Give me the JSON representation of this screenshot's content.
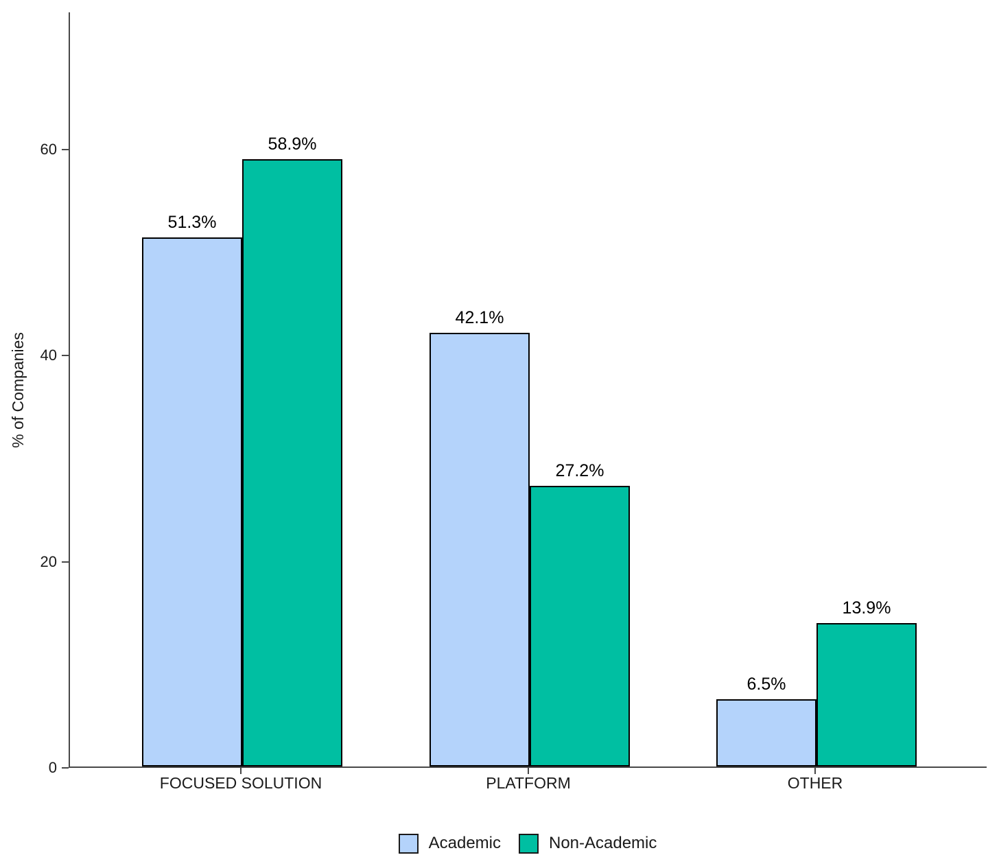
{
  "chart_data": {
    "type": "bar",
    "title": "",
    "ylabel": "% of Companies",
    "xlabel": "",
    "categories": [
      "FOCUSED SOLUTION",
      "PLATFORM",
      "OTHER"
    ],
    "series": [
      {
        "name": "Academic",
        "color": "#B4D3FB",
        "values": [
          51.3,
          42.1,
          6.5
        ],
        "labels": [
          "51.3%",
          "42.1%",
          "6.5%"
        ]
      },
      {
        "name": "Non-Academic",
        "color": "#00BFA2",
        "values": [
          58.9,
          27.2,
          13.9
        ],
        "labels": [
          "58.9%",
          "27.2%",
          "13.9%"
        ]
      }
    ],
    "yticks": [
      0,
      20,
      40,
      60
    ],
    "ylim": [
      0,
      73.3
    ],
    "grid": false,
    "legend_position": "bottom",
    "bar_border_color": "#000000",
    "axis_color": "#474747",
    "background_color": "#FFFFFF"
  }
}
